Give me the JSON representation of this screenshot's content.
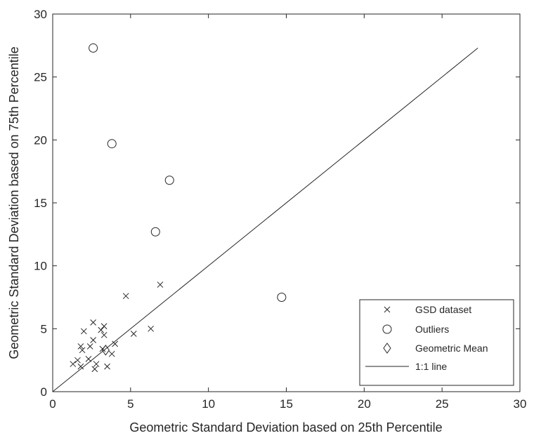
{
  "chart_data": {
    "type": "scatter",
    "title": "",
    "xlabel": "Geometric Standard Deviation based on 25th Percentile",
    "ylabel": "Geometric Standard Deviation based on 75th Percentile",
    "xlim": [
      0,
      30
    ],
    "ylim": [
      0,
      30
    ],
    "xticks": [
      "0",
      "5",
      "10",
      "15",
      "20",
      "25",
      "30"
    ],
    "yticks": [
      "0",
      "5",
      "10",
      "15",
      "20",
      "25",
      "30"
    ],
    "grid": false,
    "legend_position": "bottom-right",
    "series": [
      {
        "name": "GSD dataset",
        "marker": "x",
        "points": [
          [
            1.3,
            2.2
          ],
          [
            1.6,
            2.5
          ],
          [
            1.8,
            3.6
          ],
          [
            1.8,
            2.0
          ],
          [
            1.9,
            3.3
          ],
          [
            2.0,
            4.8
          ],
          [
            2.3,
            2.6
          ],
          [
            2.4,
            3.6
          ],
          [
            2.6,
            4.1
          ],
          [
            2.6,
            5.5
          ],
          [
            2.7,
            1.8
          ],
          [
            2.8,
            2.2
          ],
          [
            3.1,
            4.9
          ],
          [
            3.2,
            3.4
          ],
          [
            3.3,
            5.2
          ],
          [
            3.3,
            4.5
          ],
          [
            3.5,
            2.0
          ],
          [
            3.8,
            3.0
          ],
          [
            4.0,
            3.8
          ],
          [
            4.7,
            7.6
          ],
          [
            5.2,
            4.6
          ],
          [
            6.3,
            5.0
          ],
          [
            6.9,
            8.5
          ]
        ]
      },
      {
        "name": "Outliers",
        "marker": "circle",
        "points": [
          [
            2.6,
            27.3
          ],
          [
            3.8,
            19.7
          ],
          [
            7.5,
            16.8
          ],
          [
            6.6,
            12.7
          ],
          [
            14.7,
            7.5
          ]
        ]
      },
      {
        "name": "Geometric Mean",
        "marker": "diamond",
        "points": [
          [
            3.4,
            3.3
          ]
        ]
      },
      {
        "name": "1:1 line",
        "marker": "line",
        "points": [
          [
            0,
            0
          ],
          [
            27.3,
            27.3
          ]
        ]
      }
    ]
  }
}
